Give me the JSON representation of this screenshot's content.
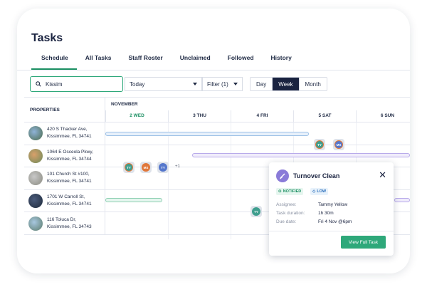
{
  "page": {
    "title": "Tasks"
  },
  "tabs": [
    {
      "label": "Schedule",
      "active": true
    },
    {
      "label": "All Tasks"
    },
    {
      "label": "Staff Roster"
    },
    {
      "label": "Unclaimed"
    },
    {
      "label": "Followed"
    },
    {
      "label": "History"
    }
  ],
  "toolbar": {
    "search_value": "Kissim",
    "date_select": "Today",
    "filter_label": "Filter (1)",
    "view_day": "Day",
    "view_week": "Week",
    "view_month": "Month",
    "active_view": "Week"
  },
  "calendar": {
    "properties_header": "PROPERTIES",
    "month": "NOVEMBER",
    "days": [
      {
        "label": "2 WED",
        "today": true
      },
      {
        "label": "3 THU"
      },
      {
        "label": "4 FRI"
      },
      {
        "label": "5 SAT"
      },
      {
        "label": "6 SUN"
      }
    ],
    "properties": [
      {
        "line1": "420 S Thacker Ave,",
        "line2": "Kissimmee, FL 34741"
      },
      {
        "line1": "1064 E Osceola Pkwy,",
        "line2": "Kissimmee, FL 34744"
      },
      {
        "line1": "101 Church St #100,",
        "line2": "Kissimmee, FL 34741"
      },
      {
        "line1": "1701 W Carroll St,",
        "line2": "Kissimmee, FL 34741"
      },
      {
        "line1": "116 Toluca Dr,",
        "line2": "Kissimmee, FL 34743"
      }
    ],
    "chips": {
      "row1": [
        "TY",
        "MS"
      ],
      "row2": [
        "TY",
        "MS",
        "TY"
      ],
      "row2_more": "+1",
      "row4": [
        "TY"
      ]
    }
  },
  "popup": {
    "title": "Turnover Clean",
    "badge_notified": "NOTIFIED",
    "badge_low": "LOW",
    "assignee_label": "Assignee:",
    "assignee_value": "Tammy Yellow",
    "duration_label": "Task duration:",
    "duration_value": "1h 30m",
    "due_label": "Due date:",
    "due_value": "Fri 4 Nov @6pm",
    "button": "View Full Task"
  },
  "colors": {
    "accent_green": "#2ea87a",
    "navy": "#1a2340",
    "purple": "#8a7bd8",
    "teal_avatar": "#3f9e8e",
    "orange_avatar": "#e0773a",
    "blue_avatar": "#5577cc"
  }
}
